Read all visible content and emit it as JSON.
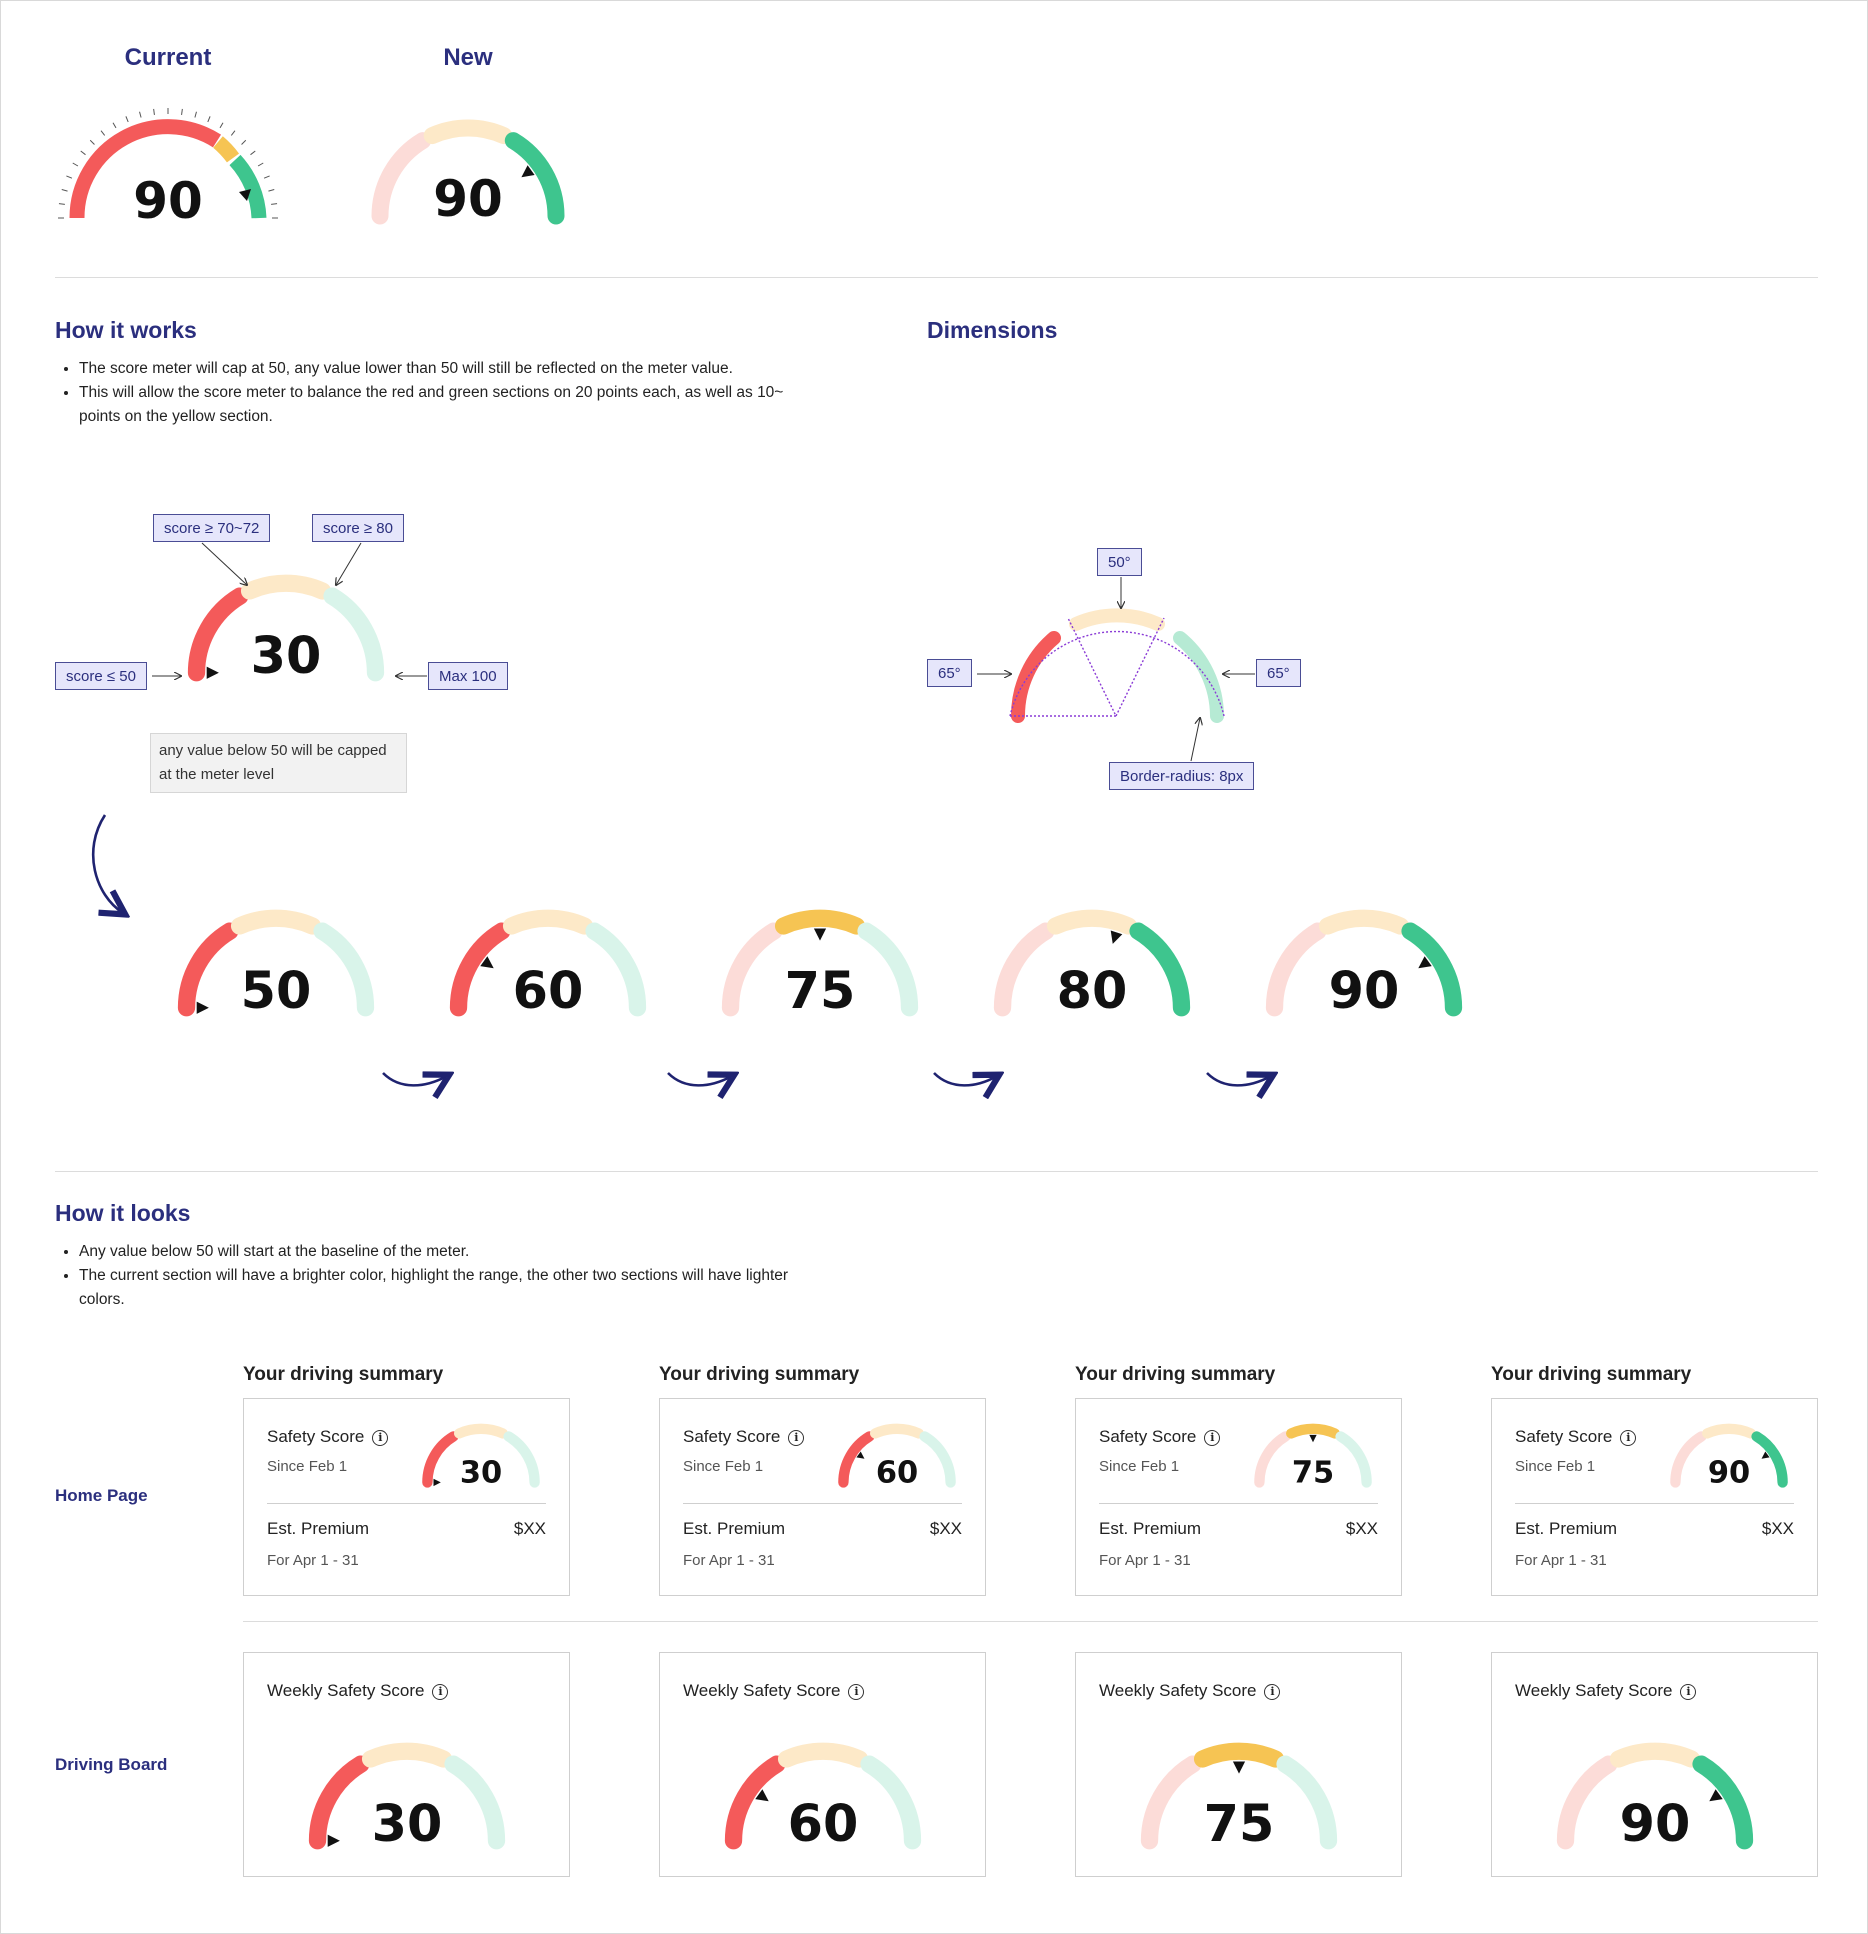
{
  "comparison": {
    "current_title": "Current",
    "new_title": "New",
    "current_score": "90",
    "new_score": "90"
  },
  "how_it_works": {
    "title": "How it works",
    "bullets": [
      "The score meter will cap at 50, any value lower than 50 will still be reflected on the meter value.",
      "This will allow the score meter to balance the red and green sections on 20 points each, as well as 10~ points on the yellow section."
    ],
    "example_score": "30",
    "tags": {
      "yellow": "score ≥ 70~72",
      "green": "score ≥ 80",
      "min": "score ≤ 50",
      "max": "Max 100"
    },
    "note": "any value below 50 will be capped at the meter level"
  },
  "dimensions": {
    "title": "Dimensions",
    "top_angle": "50°",
    "left_angle": "65°",
    "right_angle": "65°",
    "radius": "Border-radius: 8px"
  },
  "sequence": {
    "scores": [
      "50",
      "60",
      "75",
      "80",
      "90"
    ],
    "levels": [
      50,
      60,
      75,
      80,
      90
    ]
  },
  "how_it_looks": {
    "title": "How it looks",
    "bullets": [
      "Any value below 50 will start at the baseline of the meter.",
      "The current section will have a brighter color, highlight the range, the other two sections will have lighter colors."
    ]
  },
  "home_page": {
    "row_label": "Home Page",
    "summary_title": "Your driving summary",
    "safety_label": "Safety Score",
    "since": "Since Feb 1",
    "premium_label": "Est. Premium",
    "premium_value": "$XX",
    "period": "For Apr 1 - 31",
    "cards": [
      {
        "score": "30",
        "level": 30
      },
      {
        "score": "60",
        "level": 60
      },
      {
        "score": "75",
        "level": 75
      },
      {
        "score": "90",
        "level": 90
      }
    ]
  },
  "driving_board": {
    "row_label": "Driving Board",
    "title": "Weekly Safety Score",
    "cards": [
      {
        "score": "30",
        "level": 30
      },
      {
        "score": "60",
        "level": 60
      },
      {
        "score": "75",
        "level": 75
      },
      {
        "score": "90",
        "level": 90
      }
    ]
  },
  "colors": {
    "red": "#f45a5a",
    "red_light": "#fcdcd8",
    "yellow": "#f6c453",
    "yellow_light": "#fde9c8",
    "green": "#3ec58e",
    "green_light": "#d9f4ea",
    "green_mid": "#b6ead4",
    "navy": "#2b2f7e"
  },
  "icons": {
    "info": "info-icon",
    "arrow": "curved-arrow-icon",
    "pointer": "triangle-pointer-icon"
  }
}
